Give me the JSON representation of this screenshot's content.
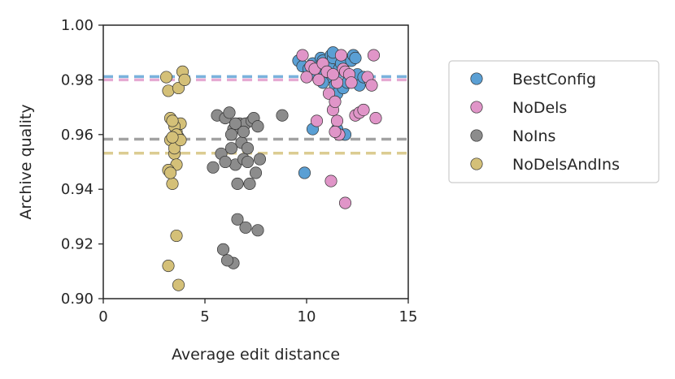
{
  "chart_data": {
    "type": "scatter",
    "title": "",
    "xlabel": "Average edit distance",
    "ylabel": "Archive quality",
    "xlim": [
      0,
      15
    ],
    "ylim": [
      0.9,
      1.0
    ],
    "xticks": [
      0,
      5,
      10,
      15
    ],
    "xtick_labels": [
      "0",
      "5",
      "10",
      "15"
    ],
    "yticks": [
      0.9,
      0.92,
      0.94,
      0.96,
      0.98,
      1.0
    ],
    "ytick_labels": [
      "0.90",
      "0.92",
      "0.94",
      "0.96",
      "0.98",
      "1.00"
    ],
    "grid": false,
    "legend_position": "outside-right",
    "series": [
      {
        "name": "BestConfig",
        "color": "#5a9fd4",
        "mean_line": 0.9812,
        "x": [
          9.6,
          9.8,
          10.1,
          10.3,
          10.5,
          10.7,
          10.8,
          10.9,
          11.0,
          11.1,
          11.2,
          11.3,
          11.4,
          11.5,
          11.6,
          11.7,
          11.8,
          12.0,
          12.2,
          12.3,
          12.5,
          12.6,
          12.8,
          11.3,
          11.5,
          11.9,
          12.4,
          10.8,
          10.3,
          9.9
        ],
        "y": [
          0.987,
          0.985,
          0.984,
          0.986,
          0.982,
          0.988,
          0.987,
          0.983,
          0.981,
          0.985,
          0.989,
          0.988,
          0.978,
          0.975,
          0.984,
          0.986,
          0.977,
          0.979,
          0.987,
          0.989,
          0.982,
          0.978,
          0.981,
          0.99,
          0.962,
          0.96,
          0.988,
          0.979,
          0.962,
          0.946
        ]
      },
      {
        "name": "NoDels",
        "color": "#e095c8",
        "mean_line": 0.98,
        "x": [
          9.8,
          10.0,
          10.2,
          10.4,
          10.6,
          10.8,
          11.0,
          11.1,
          11.3,
          11.4,
          11.5,
          11.6,
          11.7,
          11.8,
          11.9,
          12.1,
          12.4,
          12.6,
          12.8,
          13.0,
          13.2,
          13.3,
          11.2,
          11.4,
          11.5,
          11.9,
          10.5,
          12.2,
          13.4,
          11.3
        ],
        "y": [
          0.989,
          0.981,
          0.985,
          0.984,
          0.98,
          0.986,
          0.983,
          0.975,
          0.969,
          0.972,
          0.965,
          0.96,
          0.989,
          0.984,
          0.983,
          0.982,
          0.967,
          0.968,
          0.969,
          0.981,
          0.978,
          0.989,
          0.943,
          0.961,
          0.979,
          0.935,
          0.965,
          0.979,
          0.966,
          0.982
        ]
      },
      {
        "name": "NoIns",
        "color": "#8c8c8c",
        "mean_line": 0.9583,
        "x": [
          5.4,
          5.6,
          5.8,
          6.0,
          6.2,
          6.3,
          6.4,
          6.5,
          6.6,
          6.7,
          6.8,
          6.9,
          7.0,
          7.1,
          7.2,
          7.3,
          7.4,
          7.5,
          7.6,
          7.7,
          5.9,
          6.4,
          6.6,
          7.0,
          7.6,
          6.1,
          6.3,
          8.8,
          6.0,
          6.9,
          7.1,
          6.5
        ],
        "y": [
          0.948,
          0.967,
          0.953,
          0.966,
          0.968,
          0.955,
          0.962,
          0.949,
          0.942,
          0.964,
          0.957,
          0.951,
          0.964,
          0.95,
          0.942,
          0.965,
          0.966,
          0.946,
          0.963,
          0.951,
          0.918,
          0.913,
          0.929,
          0.926,
          0.925,
          0.914,
          0.96,
          0.967,
          0.95,
          0.961,
          0.955,
          0.964
        ]
      },
      {
        "name": "NoDelsAndIns",
        "color": "#d4c078",
        "mean_line": 0.9532,
        "x": [
          3.1,
          3.2,
          3.3,
          3.4,
          3.5,
          3.6,
          3.7,
          3.8,
          3.9,
          4.0,
          3.3,
          3.5,
          3.6,
          3.4,
          3.2,
          3.5,
          3.3,
          3.7,
          3.4,
          3.6,
          3.8,
          3.2,
          3.6,
          3.7,
          3.4
        ],
        "y": [
          0.981,
          0.976,
          0.966,
          0.958,
          0.953,
          0.961,
          0.977,
          0.964,
          0.983,
          0.98,
          0.958,
          0.955,
          0.949,
          0.942,
          0.947,
          0.963,
          0.946,
          0.959,
          0.965,
          0.96,
          0.958,
          0.912,
          0.923,
          0.905,
          0.959
        ]
      }
    ],
    "legend": [
      "BestConfig",
      "NoDels",
      "NoIns",
      "NoDelsAndIns"
    ]
  }
}
